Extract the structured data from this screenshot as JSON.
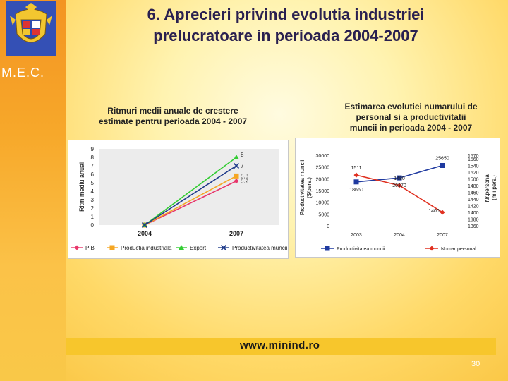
{
  "slide": {
    "title_line1": "6. Aprecieri privind evolutia industriei",
    "title_line2": "prelucratoare in perioada 2004-2007",
    "org": "M.E.C.",
    "url": "www.minind.ro",
    "page": "30"
  },
  "colors": {
    "pib": "#e8366b",
    "productia": "#f5a623",
    "export": "#33cc33",
    "productivitate": "#1f3a8a",
    "personal": "#e03020",
    "productivitate_muncii": "#1f3aa0"
  },
  "chart_data": [
    {
      "type": "line",
      "title_line1": "Ritmuri medii anuale de crestere",
      "title_line2": "estimate pentru perioada 2004 - 2007",
      "ylabel": "Ritm mediu anual",
      "xlabel": "",
      "categories": [
        "2004",
        "2007"
      ],
      "ylim": [
        0,
        9
      ],
      "yticks": [
        "0",
        "1",
        "2",
        "3",
        "4",
        "5",
        "6",
        "7",
        "8",
        "9"
      ],
      "series": [
        {
          "name": "PIB",
          "values": [
            0,
            5.2
          ]
        },
        {
          "name": "Productia industriala",
          "values": [
            0,
            5.8
          ]
        },
        {
          "name": "Export",
          "values": [
            0,
            8
          ]
        },
        {
          "name": "Productivitatea muncii",
          "values": [
            0,
            7
          ]
        }
      ],
      "data_labels": [
        "8",
        "7",
        "5.8",
        "5.2"
      ],
      "legend": "bottom"
    },
    {
      "type": "line",
      "title_line1": "Estimarea evolutiei numarului de",
      "title_line2": "personal si a productivitatii",
      "title_line3": "muncii in perioada 2004 - 2007",
      "ylabel_left_1": "Productivitatea muncii",
      "ylabel_left_2": "($/pers.)",
      "ylabel_right_1": "Nr.personal",
      "ylabel_right_2": "(mii pers.)",
      "categories": [
        "2003",
        "2004",
        "2007"
      ],
      "ylim_left": [
        0,
        30000
      ],
      "yticks_left": [
        "0",
        "5000",
        "10000",
        "15000",
        "20000",
        "25000",
        "30000"
      ],
      "ylim_right": [
        1360,
        1570
      ],
      "yticks_right": [
        "1360",
        "1380",
        "1400",
        "1420",
        "1440",
        "1460",
        "1480",
        "1500",
        "1520",
        "1540",
        "1560",
        "1570"
      ],
      "series": [
        {
          "name": "Productivitatea muncii",
          "axis": "left",
          "values": [
            18660,
            20370,
            25650
          ]
        },
        {
          "name": "Numar personal",
          "axis": "right",
          "values": [
            1511,
            1480,
            1400
          ]
        }
      ],
      "data_labels_productivitate": [
        "18660",
        "20370",
        "25650"
      ],
      "data_labels_personal": [
        "1511",
        "1480",
        "1400"
      ],
      "legend": "bottom"
    }
  ]
}
